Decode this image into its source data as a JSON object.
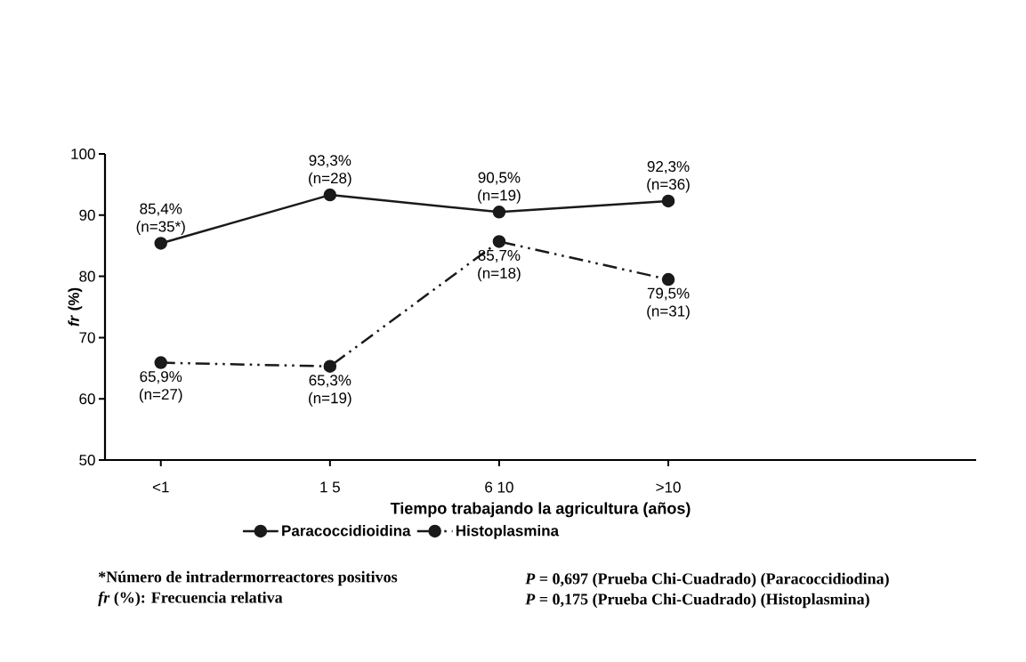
{
  "chart_data": {
    "type": "line",
    "xlabel": "Tiempo trabajando la agricultura (años)",
    "ylabel": "*fr* (%)",
    "categories": [
      "<1",
      "1 5",
      "6 10",
      ">10"
    ],
    "series": [
      {
        "name": "Paracoccidioidina",
        "color": "#1a1a1a",
        "line_style": "solid",
        "values": [
          85.4,
          93.3,
          90.5,
          92.3
        ],
        "value_labels": [
          "85,4% (n=35*)",
          "93,3% (n=28)",
          "90,5% (n=19)",
          "92,3% (n=36)"
        ]
      },
      {
        "name": "Histoplasmina",
        "color": "#1a1a1a",
        "line_style": "dashed",
        "values": [
          65.9,
          65.3,
          85.7,
          79.5
        ],
        "value_labels": [
          "65,9% (n=27)",
          "65,3% (n=19)",
          "85,7% (n=18)",
          "79,5% (n=31)"
        ]
      }
    ],
    "ylim": [
      50,
      100
    ],
    "yticks": [
      50,
      60,
      70,
      80,
      90,
      100
    ],
    "grid": false,
    "marker": "circle",
    "legend": "bottom",
    "annotations": [
      "*Número de intradermorreactores positivos",
      "*fr* (%): Frecuencia relativa",
      "*P* = 0,697 (Prueba Chi-Cuadrado) (Paracoccidiodina)",
      "*P* = 0,175 (Prueba Chi-Cuadrado) (Histoplasmina)"
    ]
  }
}
